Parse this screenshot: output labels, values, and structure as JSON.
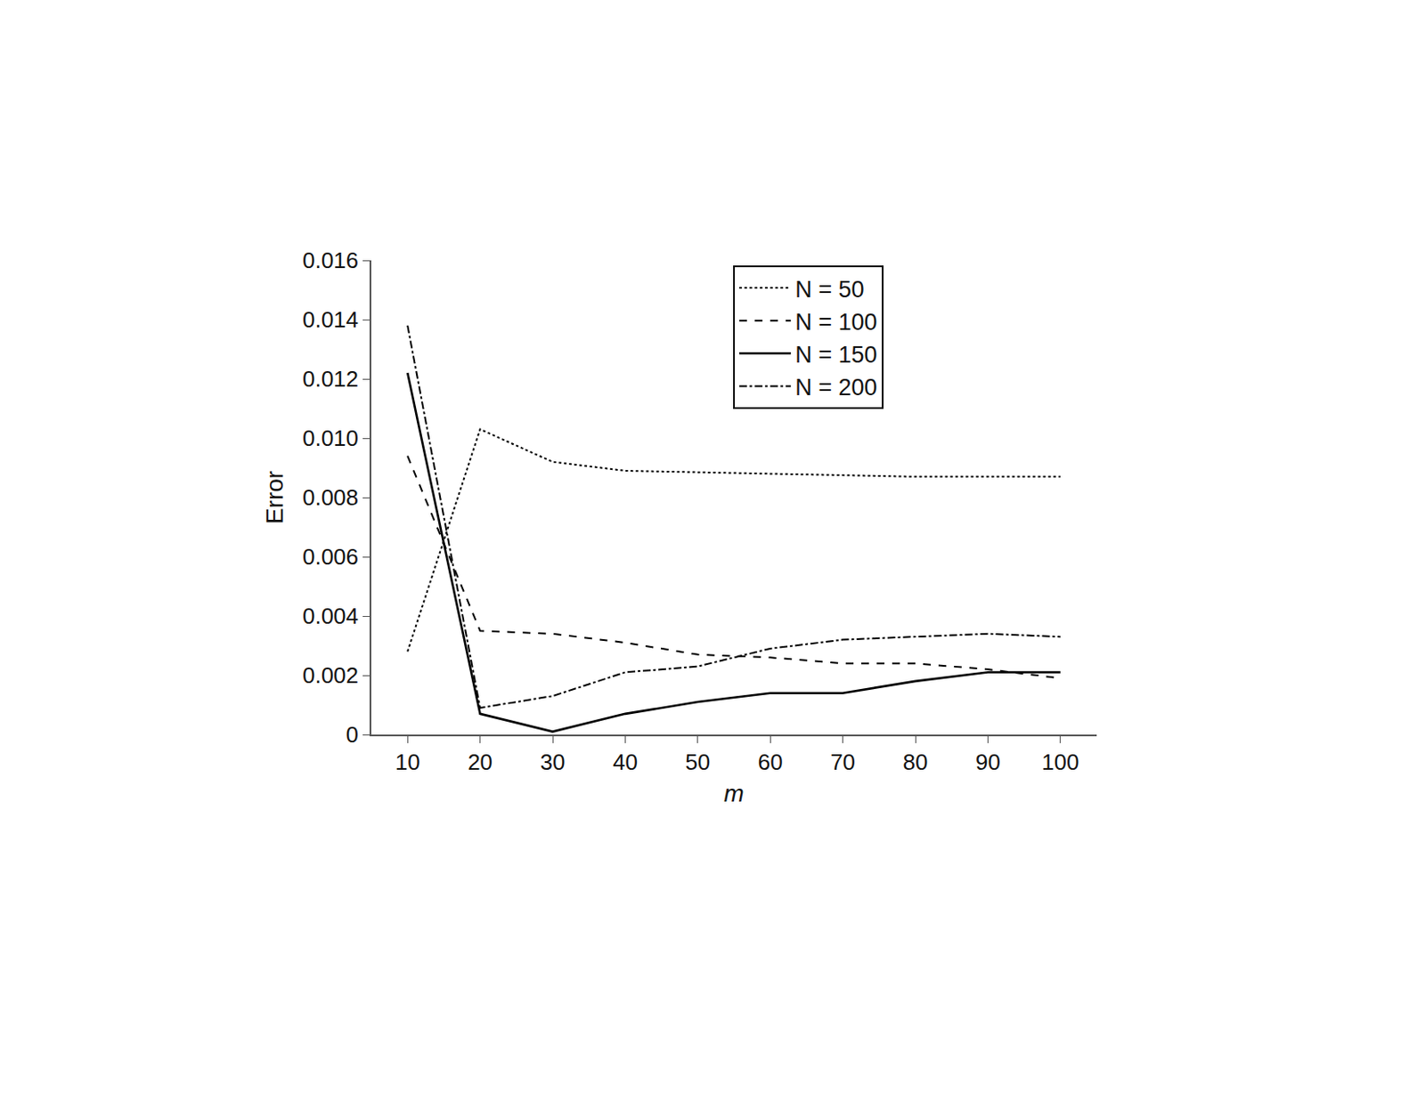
{
  "chart_data": {
    "type": "line",
    "x_label": "m",
    "y_label": "Error",
    "x": [
      10,
      20,
      30,
      40,
      50,
      60,
      70,
      80,
      90,
      100
    ],
    "xlim": [
      5,
      105
    ],
    "xticks": [
      10,
      20,
      30,
      40,
      50,
      60,
      70,
      80,
      90,
      100
    ],
    "ylim": [
      0,
      0.016
    ],
    "yticks": [
      0,
      0.002,
      0.004,
      0.006,
      0.008,
      {
        "value": 0.01,
        "label": "0.010"
      },
      0.012,
      0.014,
      0.016
    ],
    "grid": false,
    "legend": "upper right",
    "series": [
      {
        "name": "N = 50",
        "color": "#000000",
        "line_style": "dot",
        "values": [
          0.0028,
          0.0103,
          0.0092,
          0.0089,
          0.00885,
          0.0088,
          0.00875,
          0.0087,
          0.0087,
          0.0087
        ]
      },
      {
        "name": "N = 100",
        "color": "#000000",
        "line_style": "dash",
        "values": [
          0.0094,
          0.0035,
          0.0034,
          0.0031,
          0.0027,
          0.0026,
          0.0024,
          0.0024,
          0.0022,
          0.0019
        ]
      },
      {
        "name": "N = 150",
        "color": "#000000",
        "line_style": "solid",
        "values": [
          0.0122,
          0.0007,
          0.0001,
          0.0007,
          0.0011,
          0.0014,
          0.0014,
          0.0018,
          0.0021,
          0.0021
        ]
      },
      {
        "name": "N = 200",
        "color": "#000000",
        "line_style": "dashdot",
        "values": [
          0.0138,
          0.0009,
          0.0013,
          0.0021,
          0.0023,
          0.0029,
          0.0032,
          0.0033,
          0.0034,
          0.0033
        ]
      }
    ]
  }
}
